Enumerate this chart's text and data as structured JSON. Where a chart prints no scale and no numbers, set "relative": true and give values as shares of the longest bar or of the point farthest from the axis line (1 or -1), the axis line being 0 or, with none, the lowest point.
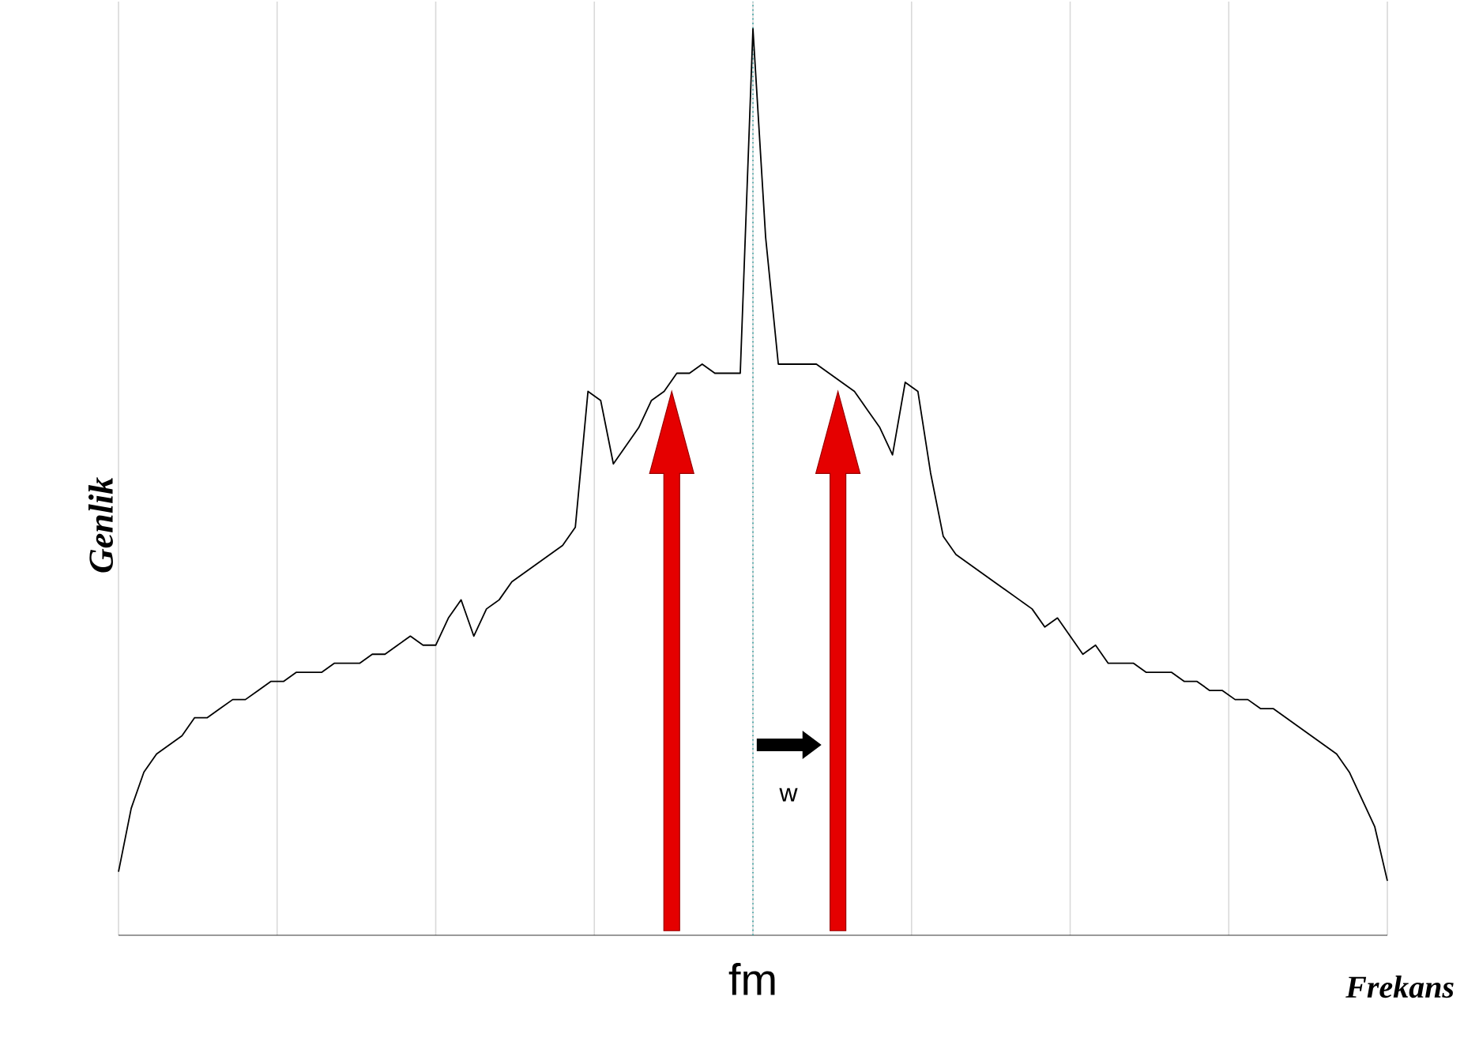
{
  "chart_data": {
    "type": "line",
    "relative": true,
    "xlabel": "Frekans",
    "ylabel": "Genlik",
    "annotations": [
      "fm",
      "w"
    ],
    "categories": [
      null,
      null,
      null,
      null,
      null,
      null,
      null,
      null,
      null,
      null,
      null,
      null,
      null,
      null,
      null,
      null,
      null,
      null,
      null,
      null,
      null,
      null,
      null,
      null,
      null,
      null,
      null,
      null,
      null,
      null,
      null,
      null,
      null,
      null,
      null,
      null,
      null,
      null,
      null,
      null,
      null,
      null,
      null,
      null,
      null,
      null,
      null,
      null,
      null,
      null,
      null,
      null,
      null,
      null,
      null,
      null,
      null,
      null,
      null,
      null,
      null,
      null,
      null,
      null,
      null,
      null,
      null,
      null,
      null,
      null,
      null,
      null,
      null,
      null,
      null,
      null,
      null,
      null,
      null,
      null,
      null,
      null,
      null,
      null,
      null,
      null,
      null,
      null,
      null,
      null,
      null,
      null,
      null,
      null,
      null,
      null,
      null,
      null,
      null,
      null,
      null
    ],
    "series": [
      {
        "color": "#000000",
        "values": [
          0.07,
          0.14,
          0.18,
          0.2,
          0.21,
          0.22,
          0.24,
          0.24,
          0.25,
          0.26,
          0.26,
          0.27,
          0.28,
          0.28,
          0.29,
          0.29,
          0.29,
          0.3,
          0.3,
          0.3,
          0.31,
          0.31,
          0.32,
          0.33,
          0.32,
          0.32,
          0.35,
          0.37,
          0.33,
          0.36,
          0.37,
          0.39,
          0.4,
          0.41,
          0.42,
          0.43,
          0.45,
          0.6,
          0.59,
          0.52,
          0.54,
          0.56,
          0.59,
          0.6,
          0.62,
          0.62,
          0.63,
          0.62,
          0.62,
          0.62,
          1,
          0.77,
          0.63,
          0.63,
          0.63,
          0.63,
          0.62,
          0.61,
          0.6,
          0.58,
          0.56,
          0.53,
          0.61,
          0.6,
          0.51,
          0.44,
          0.42,
          0.41,
          0.4,
          0.39,
          0.38,
          0.37,
          0.36,
          0.34,
          0.35,
          0.33,
          0.31,
          0.32,
          0.3,
          0.3,
          0.3,
          0.29,
          0.29,
          0.29,
          0.28,
          0.28,
          0.27,
          0.27,
          0.26,
          0.26,
          0.25,
          0.25,
          0.24,
          0.23,
          0.22,
          0.21,
          0.2,
          0.18,
          0.15,
          0.12,
          0.06
        ]
      }
    ],
    "grid": true,
    "marker": "none",
    "line_style": "solid"
  }
}
